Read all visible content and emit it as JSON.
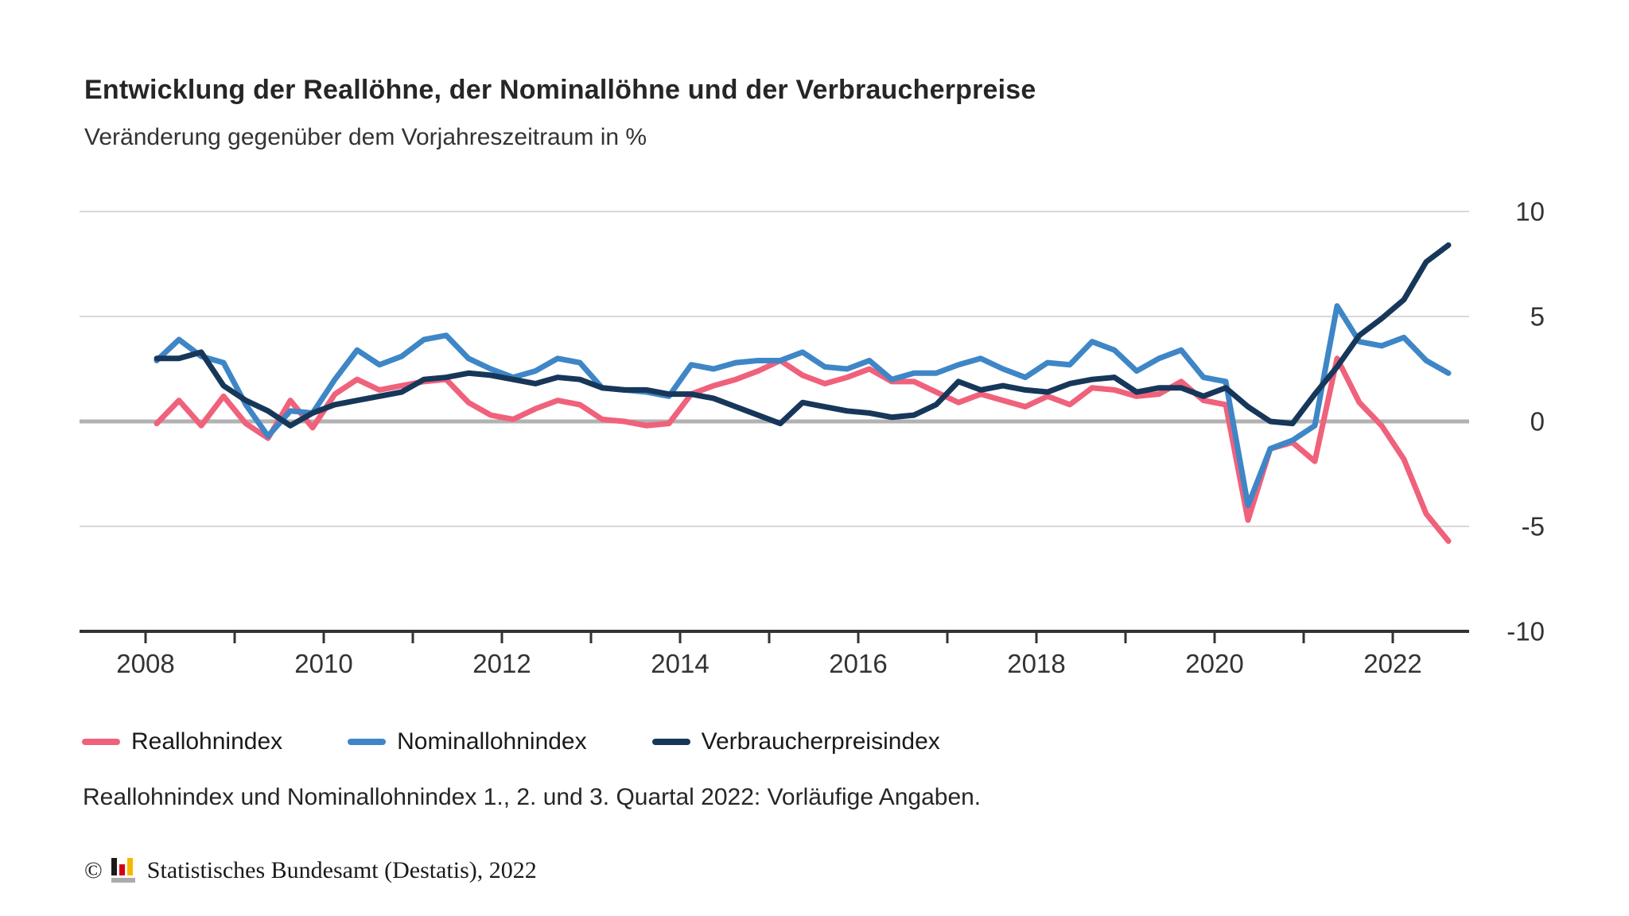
{
  "header": {
    "title": "Entwicklung der Reallöhne, der Nominallöhne und der Verbraucherpreise",
    "subtitle": "Veränderung gegenüber dem Vorjahreszeitraum in %"
  },
  "chart_data": {
    "type": "line",
    "title": "Entwicklung der Reallöhne, der Nominallöhne und der Verbraucherpreise",
    "subtitle": "Veränderung gegenüber dem Vorjahreszeitraum in %",
    "x_unit": "Quartal",
    "x_start": "2008-Q1",
    "x_end": "2022-Q3",
    "ylim": [
      -10,
      10
    ],
    "grid": "horizontal",
    "legend_position": "bottom",
    "y_ticks": [
      "10",
      "5",
      "0",
      "-5",
      "-10"
    ],
    "x_ticks": [
      "2008",
      "2010",
      "2012",
      "2014",
      "2016",
      "2018",
      "2020",
      "2022"
    ],
    "series": [
      {
        "name": "Reallohnindex",
        "color": "#F0617B",
        "values": [
          -0.1,
          1.0,
          -0.2,
          1.2,
          -0.1,
          -0.8,
          1.0,
          -0.3,
          1.3,
          2.0,
          1.5,
          1.7,
          1.9,
          2.0,
          0.9,
          0.3,
          0.1,
          0.6,
          1.0,
          0.8,
          0.1,
          0.0,
          -0.2,
          -0.1,
          1.3,
          1.7,
          2.0,
          2.4,
          2.9,
          2.2,
          1.8,
          2.1,
          2.5,
          1.9,
          1.9,
          1.4,
          0.9,
          1.3,
          1.0,
          0.7,
          1.2,
          0.8,
          1.6,
          1.5,
          1.2,
          1.3,
          1.9,
          1.0,
          0.8,
          -4.7,
          -1.3,
          -1.0,
          -1.9,
          3.0,
          0.9,
          -0.2,
          -1.8,
          -4.4,
          -5.7
        ]
      },
      {
        "name": "Nominallohnindex",
        "color": "#3E86C6",
        "values": [
          2.9,
          3.9,
          3.1,
          2.8,
          0.8,
          -0.7,
          0.5,
          0.4,
          2.0,
          3.4,
          2.7,
          3.1,
          3.9,
          4.1,
          3.0,
          2.5,
          2.1,
          2.4,
          3.0,
          2.8,
          1.6,
          1.5,
          1.4,
          1.2,
          2.7,
          2.5,
          2.8,
          2.9,
          2.9,
          3.3,
          2.6,
          2.5,
          2.9,
          2.0,
          2.3,
          2.3,
          2.7,
          3.0,
          2.5,
          2.1,
          2.8,
          2.7,
          3.8,
          3.4,
          2.4,
          3.0,
          3.4,
          2.1,
          1.9,
          -4.0,
          -1.3,
          -0.9,
          -0.2,
          5.5,
          3.8,
          3.6,
          4.0,
          2.9,
          2.3
        ]
      },
      {
        "name": "Verbraucherpreisindex",
        "color": "#17375A",
        "values": [
          3.0,
          3.0,
          3.3,
          1.7,
          1.0,
          0.5,
          -0.2,
          0.4,
          0.8,
          1.0,
          1.2,
          1.4,
          2.0,
          2.1,
          2.3,
          2.2,
          2.0,
          1.8,
          2.1,
          2.0,
          1.6,
          1.5,
          1.5,
          1.3,
          1.3,
          1.1,
          0.7,
          0.3,
          -0.1,
          0.9,
          0.7,
          0.5,
          0.4,
          0.2,
          0.3,
          0.8,
          1.9,
          1.5,
          1.7,
          1.5,
          1.4,
          1.8,
          2.0,
          2.1,
          1.4,
          1.6,
          1.6,
          1.2,
          1.6,
          0.7,
          0.0,
          -0.1,
          1.3,
          2.6,
          4.1,
          4.9,
          5.8,
          7.6,
          8.4
        ]
      }
    ]
  },
  "footnote": "Reallohnindex und Nominallohnindex 1., 2. und 3. Quartal 2022: Vorläufige Angaben.",
  "footer": {
    "copyright": "©",
    "source": "Statistisches Bundesamt (Destatis), 2022"
  },
  "colors": {
    "grid_line": "#D8D8D8",
    "zero_line": "#B2B2B2",
    "axis_line": "#333333",
    "text_dark": "#262626",
    "text_medium": "#333333",
    "logo_black": "#1A1A1A",
    "logo_red": "#D40014",
    "logo_gold": "#F5B800",
    "logo_gray": "#ABABAB"
  }
}
